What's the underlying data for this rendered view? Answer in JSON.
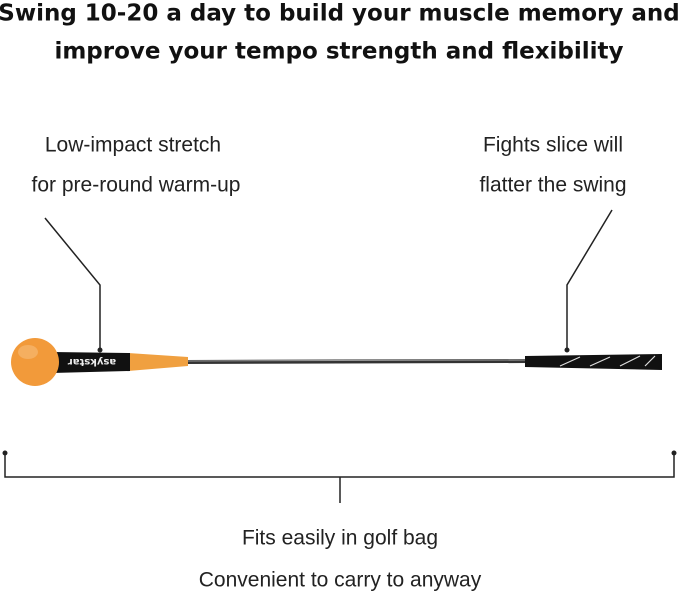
{
  "header": {
    "lines": [
      "Swing 10-20 a day to build your muscle memory and",
      "improve your tempo strength and flexibility"
    ]
  },
  "callouts": [
    {
      "lines": [
        "Low-impact stretch",
        "for pre-round warm-up"
      ]
    },
    {
      "lines": [
        "Fights slice will",
        "flatter the swing"
      ]
    }
  ],
  "product": {
    "logo": "asykstar"
  },
  "footer": {
    "lines": [
      "Fits easily in golf bag",
      "Convenient to carry to anyway"
    ]
  }
}
